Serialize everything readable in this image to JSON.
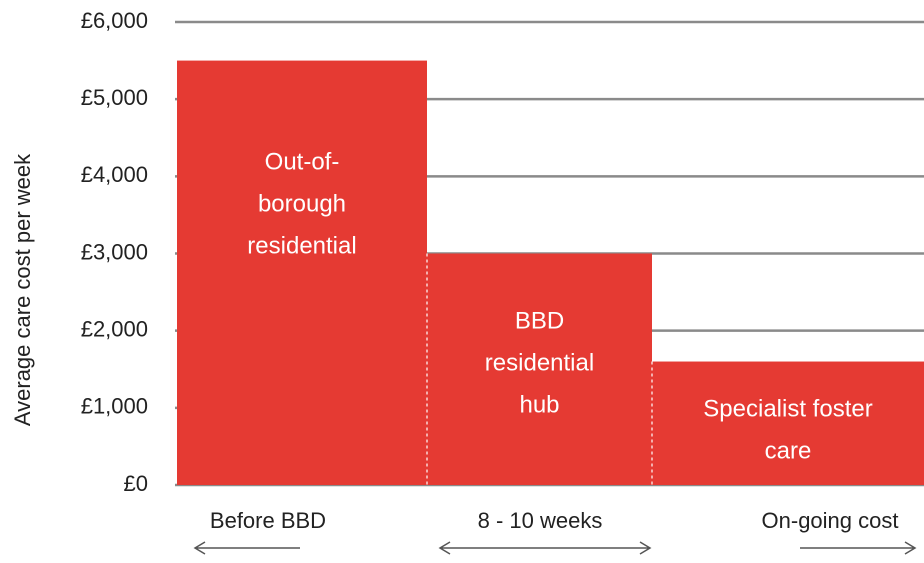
{
  "chart_data": {
    "type": "bar",
    "y_axis_label": "Average care cost per week",
    "categories": [
      "Before BBD",
      "8 - 10 weeks",
      "On-going cost"
    ],
    "values": [
      5500,
      3000,
      1600
    ],
    "bar_labels": [
      [
        "Out-of-",
        "borough",
        "residential"
      ],
      [
        "BBD",
        "residential",
        "hub"
      ],
      [
        "Specialist foster",
        "care"
      ]
    ],
    "color": "#e53a33",
    "ylim": [
      0,
      6000
    ],
    "yticks": [
      {
        "value": 0,
        "label": "£0"
      },
      {
        "value": 1000,
        "label": "£1,000"
      },
      {
        "value": 2000,
        "label": "£2,000"
      },
      {
        "value": 3000,
        "label": "£3,000"
      },
      {
        "value": 4000,
        "label": "£4,000"
      },
      {
        "value": 5000,
        "label": "£5,000"
      },
      {
        "value": 6000,
        "label": "£6,000"
      }
    ],
    "grid": true
  }
}
